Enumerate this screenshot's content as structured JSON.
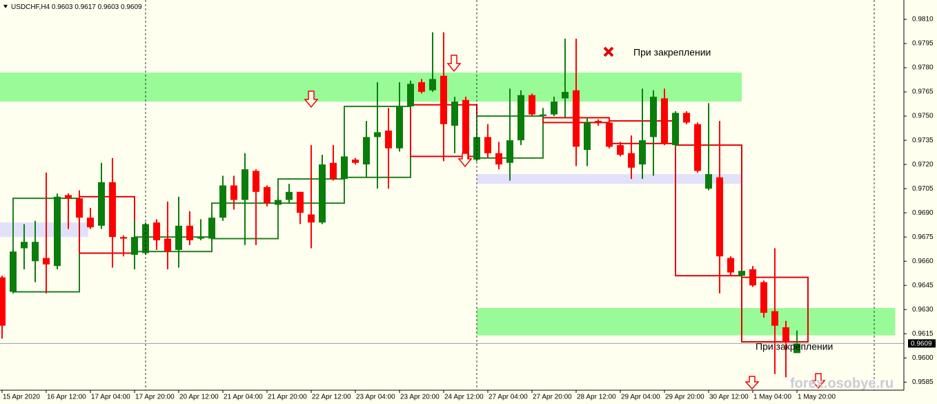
{
  "chart_data": {
    "type": "candlestick",
    "title": "USDCHF,H4",
    "up_color": "#0b7d0b",
    "down_color": "#ff0000",
    "categories": [
      "15 Apr 2020",
      null,
      null,
      null,
      "16 Apr 12:00",
      null,
      null,
      null,
      "17 Apr 04:00",
      null,
      null,
      null,
      "17 Apr 20:00",
      null,
      null,
      null,
      "20 Apr 12:00",
      null,
      null,
      null,
      "21 Apr 04:00",
      null,
      null,
      null,
      "21 Apr 20:00",
      null,
      null,
      null,
      "22 Apr 12:00",
      null,
      null,
      null,
      "23 Apr 04:00",
      null,
      null,
      null,
      "23 Apr 20:00",
      null,
      null,
      null,
      "24 Apr 12:00",
      null,
      null,
      null,
      "27 Apr 04:00",
      null,
      null,
      null,
      "27 Apr 20:00",
      null,
      null,
      null,
      "28 Apr 12:00",
      null,
      null,
      null,
      "29 Apr 04:00",
      null,
      null,
      null,
      "29 Apr 20:00",
      null,
      null,
      null,
      "30 Apr 12:00",
      null,
      null,
      null,
      "1 May 04:00",
      null,
      null,
      null,
      "1 May 20:00"
    ],
    "open": [
      0.965,
      0.9641,
      0.9668,
      0.966,
      0.9662,
      0.9657,
      0.9701,
      0.9699,
      0.9687,
      0.9682,
      0.9709,
      0.9675,
      0.9664,
      0.9665,
      0.9684,
      0.9674,
      0.9667,
      0.9682,
      0.9674,
      0.9674,
      0.9687,
      0.9707,
      0.9698,
      0.9716,
      0.9706,
      0.9695,
      0.9698,
      0.9703,
      0.9689,
      0.9684,
      0.9721,
      0.9711,
      0.9723,
      0.972,
      0.9737,
      0.9741,
      0.973,
      0.9756,
      0.9771,
      0.9766,
      0.9775,
      0.9744,
      0.976,
      0.9723,
      0.9737,
      0.9727,
      0.9721,
      0.9735,
      0.9763,
      0.975,
      0.9751,
      0.9761,
      0.9766,
      0.9729,
      0.9747,
      0.9746,
      0.9732,
      0.9727,
      0.972,
      0.9737,
      0.9761,
      0.9732,
      0.9752,
      0.9745,
      0.9705,
      0.9712,
      0.9662,
      0.9651,
      0.9655,
      0.9647,
      0.9629,
      0.9619,
      0.9603
    ],
    "high": [
      0.9651,
      0.9667,
      0.9683,
      0.9685,
      0.9715,
      0.9702,
      0.9702,
      0.9704,
      0.9693,
      0.9721,
      0.9724,
      0.9676,
      0.9685,
      0.9684,
      0.9686,
      0.9697,
      0.97,
      0.9691,
      0.9686,
      0.9689,
      0.9713,
      0.9713,
      0.9727,
      0.9717,
      0.9707,
      0.97,
      0.9708,
      0.9703,
      0.9732,
      0.9726,
      0.9732,
      0.9728,
      0.9724,
      0.9747,
      0.9771,
      0.9755,
      0.9771,
      0.9772,
      0.9773,
      0.9802,
      0.9802,
      0.9762,
      0.9762,
      0.9738,
      0.9745,
      0.9734,
      0.9767,
      0.9766,
      0.9764,
      0.9755,
      0.9762,
      0.9798,
      0.9798,
      0.9749,
      0.9748,
      0.9749,
      0.9734,
      0.9738,
      0.9767,
      0.9766,
      0.9767,
      0.9753,
      0.9753,
      0.9746,
      0.9758,
      0.9747,
      0.9663,
      0.9654,
      0.9657,
      0.9648,
      0.9668,
      0.9623,
      0.9617
    ],
    "low": [
      0.9612,
      0.964,
      0.9655,
      0.9647,
      0.964,
      0.9655,
      0.968,
      0.9685,
      0.968,
      0.968,
      0.9656,
      0.9663,
      0.9655,
      0.9664,
      0.9667,
      0.9655,
      0.9656,
      0.967,
      0.9673,
      0.9672,
      0.9685,
      0.9692,
      0.967,
      0.967,
      0.9694,
      0.9693,
      0.9696,
      0.9683,
      0.9668,
      0.9683,
      0.971,
      0.971,
      0.972,
      0.9712,
      0.9705,
      0.9705,
      0.9728,
      0.9755,
      0.9764,
      0.9765,
      0.9722,
      0.9727,
      0.9722,
      0.9722,
      0.9724,
      0.9717,
      0.971,
      0.9732,
      0.975,
      0.9749,
      0.975,
      0.9749,
      0.9719,
      0.9719,
      0.9744,
      0.973,
      0.9725,
      0.9711,
      0.9711,
      0.9713,
      0.9732,
      0.9731,
      0.9745,
      0.9715,
      0.9704,
      0.964,
      0.9651,
      0.965,
      0.9644,
      0.9625,
      0.959,
      0.9588,
      0.9603
    ],
    "close": [
      0.962,
      0.9666,
      0.9672,
      0.9672,
      0.9658,
      0.97,
      0.9699,
      0.9687,
      0.9681,
      0.9709,
      0.9675,
      0.9674,
      0.9675,
      0.9683,
      0.9673,
      0.9666,
      0.9682,
      0.9673,
      0.9675,
      0.9687,
      0.9707,
      0.9698,
      0.9717,
      0.9703,
      0.9696,
      0.9698,
      0.9703,
      0.969,
      0.9684,
      0.972,
      0.9711,
      0.9725,
      0.9721,
      0.9737,
      0.974,
      0.973,
      0.9756,
      0.977,
      0.9765,
      0.9773,
      0.9745,
      0.9759,
      0.9723,
      0.9737,
      0.9727,
      0.972,
      0.9735,
      0.9763,
      0.9751,
      0.9751,
      0.9759,
      0.9765,
      0.9731,
      0.9746,
      0.9746,
      0.9731,
      0.9726,
      0.9718,
      0.9735,
      0.9762,
      0.9733,
      0.9752,
      0.9746,
      0.9716,
      0.9714,
      0.9663,
      0.9653,
      0.9654,
      0.9645,
      0.9628,
      0.962,
      0.961,
      0.9609
    ],
    "zones": [
      {
        "high": 0.9777,
        "low": 0.9759,
        "color": "#98fb98"
      },
      {
        "high": 0.9684,
        "low": 0.9675,
        "color": "#e1e1fa"
      },
      {
        "high": 0.9714,
        "low": 0.9708,
        "color": "#e1e1fa"
      },
      {
        "high": 0.9631,
        "low": 0.9614,
        "color": "#98fb98"
      }
    ],
    "boxes": [
      {
        "high": 0.9699,
        "low": 0.9641,
        "color": "#1f7f1f"
      },
      {
        "high": 0.97,
        "low": 0.9665,
        "color": "#e00000"
      },
      {
        "high": 0.9675,
        "low": 0.9666,
        "color": "#1f7f1f"
      },
      {
        "high": 0.9696,
        "low": 0.9674,
        "color": "#1f7f1f"
      },
      {
        "high": 0.9711,
        "low": 0.9696,
        "color": "#1f7f1f"
      },
      {
        "high": 0.9756,
        "low": 0.9712,
        "color": "#1f7f1f"
      },
      {
        "high": 0.9757,
        "low": 0.9725,
        "color": "#e00000"
      },
      {
        "high": 0.975,
        "low": 0.9724,
        "color": "#1f7f1f"
      },
      {
        "high": 0.9749,
        "low": 0.9746,
        "color": "#e00000"
      },
      {
        "high": 0.9747,
        "low": 0.9733,
        "color": "#e00000"
      },
      {
        "high": 0.9732,
        "low": 0.9651,
        "color": "#e00000"
      },
      {
        "high": 0.965,
        "low": 0.961,
        "color": "#e00000"
      }
    ],
    "ylim": [
      0.958,
      0.9822
    ],
    "yticks": [
      {
        "value": 0.981,
        "label": "0.9810"
      },
      0.9795,
      {
        "value": 0.978,
        "label": "0.9780"
      },
      0.9765,
      {
        "value": 0.975,
        "label": "0.9750"
      },
      0.9735,
      {
        "value": 0.972,
        "label": "0.9720"
      },
      0.9705,
      {
        "value": 0.969,
        "label": "0.9690"
      },
      0.9675,
      {
        "value": 0.966,
        "label": "0.9660"
      },
      0.9645,
      {
        "value": 0.963,
        "label": "0.9630"
      },
      0.9615,
      {
        "value": 0.96,
        "label": "0.9600"
      },
      0.9585
    ],
    "annotations": [
      "При закреплении",
      "При закреплении"
    ],
    "watermark": "forex.osobye.ru"
  }
}
